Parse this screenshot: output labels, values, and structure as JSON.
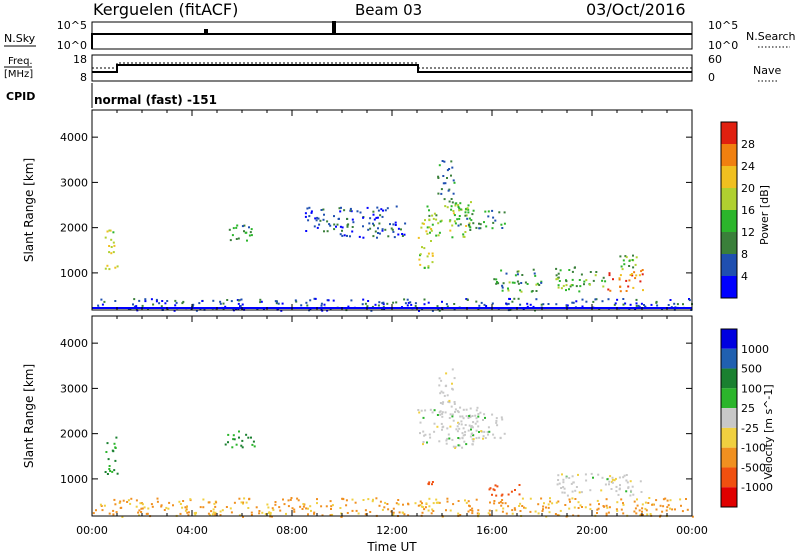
{
  "header": {
    "station": "Kerguelen (fitACF)",
    "beam": "Beam 03",
    "date": "03/Oct/2016"
  },
  "panels": {
    "nsky": {
      "left_label": "N.Sky",
      "right_label": "N.Search",
      "left_ticks": [
        "10^5",
        "10^0"
      ],
      "right_ticks": [
        "10^5",
        "10^0"
      ]
    },
    "freq": {
      "left_label_top": "Freq.",
      "left_label_bottom": "[MHz]",
      "right_label": "Nave",
      "left_ticks": [
        "18",
        "8"
      ],
      "right_ticks": [
        "60",
        "0"
      ],
      "cpid_label": "CPID",
      "cpid_text": "normal (fast) -151"
    }
  },
  "x_axis": {
    "label": "Time UT",
    "ticks": [
      "00:00",
      "04:00",
      "08:00",
      "12:00",
      "16:00",
      "20:00",
      "00:00"
    ]
  },
  "colors": {
    "power": [
      "#0000ff",
      "#1f4fb0",
      "#3a7f3a",
      "#2bb52b",
      "#b0d030",
      "#f0c020",
      "#f08010",
      "#e02010"
    ],
    "velocity": [
      "#e00000",
      "#f05010",
      "#f09020",
      "#f0d040",
      "#c8c8c8",
      "#2bb52b",
      "#1a8030",
      "#2060b0",
      "#0000e0"
    ]
  },
  "chart_data": [
    {
      "type": "heatmap",
      "title": "Power",
      "ylabel": "Slant Range [km]",
      "xlabel": "",
      "x_range_hours": [
        0,
        24
      ],
      "ylim": [
        180,
        4600
      ],
      "y_ticks": [
        1000,
        2000,
        3000,
        4000
      ],
      "colorbar": {
        "label": "Power [dB]",
        "ticks": [
          "4",
          "8",
          "12",
          "16",
          "20",
          "24",
          "28"
        ],
        "range": [
          0,
          32
        ]
      },
      "regions": [
        {
          "t": [
            0.5,
            1.0
          ],
          "r": [
            1100,
            2000
          ],
          "level": 18
        },
        {
          "t": [
            5.3,
            6.5
          ],
          "r": [
            1700,
            2100
          ],
          "level": 12
        },
        {
          "t": [
            8.5,
            12.5
          ],
          "r": [
            1800,
            2500
          ],
          "level": 6
        },
        {
          "t": [
            13.0,
            13.6
          ],
          "r": [
            1100,
            2200
          ],
          "level": 18
        },
        {
          "t": [
            13.2,
            15.2
          ],
          "r": [
            1800,
            2600
          ],
          "level": 16
        },
        {
          "t": [
            13.8,
            14.5
          ],
          "r": [
            2600,
            3500
          ],
          "level": 8
        },
        {
          "t": [
            14.5,
            16.5
          ],
          "r": [
            2000,
            2400
          ],
          "level": 10
        },
        {
          "t": [
            16.0,
            18.0
          ],
          "r": [
            600,
            1100
          ],
          "level": 12
        },
        {
          "t": [
            18.5,
            20.5
          ],
          "r": [
            600,
            1150
          ],
          "level": 14
        },
        {
          "t": [
            20.6,
            22.0
          ],
          "r": [
            600,
            1100
          ],
          "level": 26
        },
        {
          "t": [
            21.0,
            22.0
          ],
          "r": [
            1050,
            1450
          ],
          "level": 14
        },
        {
          "t": [
            0.0,
            24.0
          ],
          "r": [
            180,
            450
          ],
          "level": 6
        }
      ]
    },
    {
      "type": "heatmap",
      "title": "Velocity",
      "ylabel": "Slant Range [km]",
      "xlabel": "Time UT",
      "x_range_hours": [
        0,
        24
      ],
      "ylim": [
        180,
        4600
      ],
      "y_ticks": [
        1000,
        2000,
        3000,
        4000
      ],
      "colorbar": {
        "label": "Velocity [m s^-1]",
        "ticks": [
          "1000",
          "500",
          "100",
          "25",
          "-25",
          "-100",
          "-500",
          "-1000"
        ]
      },
      "regions": [
        {
          "t": [
            0.5,
            1.0
          ],
          "r": [
            1100,
            2000
          ],
          "velocity": 100
        },
        {
          "t": [
            5.3,
            6.5
          ],
          "r": [
            1700,
            2100
          ],
          "velocity": 100
        },
        {
          "t": [
            13.0,
            15.5
          ],
          "r": [
            1700,
            2600
          ],
          "velocity": 0
        },
        {
          "t": [
            13.8,
            14.5
          ],
          "r": [
            2600,
            3500
          ],
          "velocity": 0
        },
        {
          "t": [
            14.5,
            16.5
          ],
          "r": [
            1900,
            2600
          ],
          "velocity": 0
        },
        {
          "t": [
            13.4,
            13.8
          ],
          "r": [
            900,
            1200
          ],
          "velocity": -200
        },
        {
          "t": [
            15.7,
            17.2
          ],
          "r": [
            650,
            900
          ],
          "velocity": -300
        },
        {
          "t": [
            18.5,
            22.0
          ],
          "r": [
            650,
            1150
          ],
          "velocity": 0
        },
        {
          "t": [
            0.0,
            24.0
          ],
          "r": [
            180,
            600
          ],
          "velocity": -60
        }
      ]
    }
  ]
}
